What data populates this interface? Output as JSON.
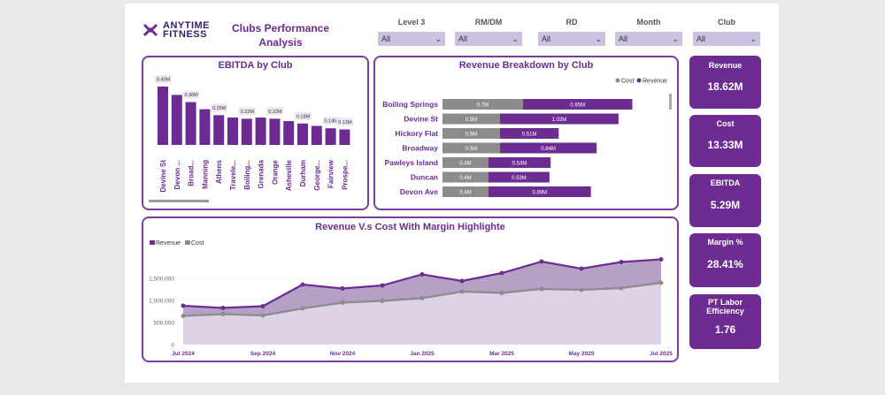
{
  "logo": {
    "line1": "ANYTIME",
    "line2": "FITNESS"
  },
  "title": {
    "line1": "Clubs Performance",
    "line2": "Analysis"
  },
  "filters": [
    {
      "label": "Level 3",
      "value": "All"
    },
    {
      "label": "RM/DM",
      "value": "All"
    },
    {
      "label": "RD",
      "value": "All"
    },
    {
      "label": "Month",
      "value": "All"
    },
    {
      "label": "Club",
      "value": "All"
    }
  ],
  "kpis": [
    {
      "label": "Revenue",
      "value": "18.62M"
    },
    {
      "label": "Cost",
      "value": "13.33M"
    },
    {
      "label": "EBITDA",
      "value": "5.29M"
    },
    {
      "label": "Margin %",
      "value": "28.41%"
    },
    {
      "label": "PT Labor Efficiency",
      "value": "1.76"
    }
  ],
  "colors": {
    "purple": "#6d2c91",
    "light_purple": "#ccc1e0",
    "gray": "#8c8c8c",
    "area_top": "#a98fbb",
    "area_bottom": "#d9cde3"
  },
  "chart_data": [
    {
      "type": "bar",
      "title": "EBITDA by Club",
      "categories": [
        "Devine St",
        "Devon ...",
        "Broad...",
        "Manning",
        "Athens",
        "Travele...",
        "Boiling...",
        "Grenada",
        "Orange",
        "Asheville",
        "Durham",
        "George...",
        "Fairview",
        "Prospe..."
      ],
      "values": [
        0.49,
        0.42,
        0.36,
        0.3,
        0.25,
        0.23,
        0.22,
        0.23,
        0.22,
        0.2,
        0.18,
        0.16,
        0.14,
        0.13
      ],
      "labels": [
        "0.49M",
        "",
        "0.36M",
        "",
        "0.25M",
        "",
        "0.22M",
        "",
        "0.22M",
        "",
        "0.18M",
        "",
        "0.14M",
        "0.13M"
      ]
    },
    {
      "type": "bar",
      "title": "Revenue Breakdown by Club",
      "legend": [
        "Cost",
        "Revenue"
      ],
      "categories": [
        "Boiling Springs",
        "Devine St",
        "Hickory Flat",
        "Broadway",
        "Pawleys Island",
        "Duncan",
        "Devon Ave"
      ],
      "series": [
        {
          "name": "Cost",
          "values": [
            0.7,
            0.5,
            0.5,
            0.5,
            0.4,
            0.4,
            0.4
          ],
          "labels": [
            "0.7M",
            "0.5M",
            "0.5M",
            "0.5M",
            "0.4M",
            "0.4M",
            "0.4M"
          ]
        },
        {
          "name": "Revenue",
          "values": [
            0.95,
            1.03,
            0.51,
            0.84,
            0.54,
            0.53,
            0.89
          ],
          "labels": [
            "0.95M",
            "1.03M",
            "0.51M",
            "0.84M",
            "0.54M",
            "0.53M",
            "0.89M"
          ]
        }
      ]
    },
    {
      "type": "area",
      "title": "Revenue V.s Cost With Margin Highlighte",
      "legend": [
        "Revenue",
        "Cost"
      ],
      "x_labels": [
        "Jul 2024",
        "Sep 2024",
        "Nov 2024",
        "Jan 2025",
        "Mar 2025",
        "May 2025",
        "Jul 2025"
      ],
      "y_ticks": [
        0,
        500000,
        1000000,
        1500000
      ],
      "y_tick_labels": [
        "0",
        "500,000",
        "1,000,000",
        "1,500,000"
      ],
      "ylim": [
        0,
        2000000
      ],
      "series": [
        {
          "name": "Revenue",
          "values": [
            880000,
            830000,
            870000,
            1360000,
            1270000,
            1340000,
            1590000,
            1440000,
            1620000,
            1880000,
            1720000,
            1870000,
            1930000
          ]
        },
        {
          "name": "Cost",
          "values": [
            650000,
            690000,
            660000,
            820000,
            950000,
            990000,
            1050000,
            1200000,
            1170000,
            1260000,
            1240000,
            1280000,
            1400000
          ]
        }
      ]
    }
  ]
}
